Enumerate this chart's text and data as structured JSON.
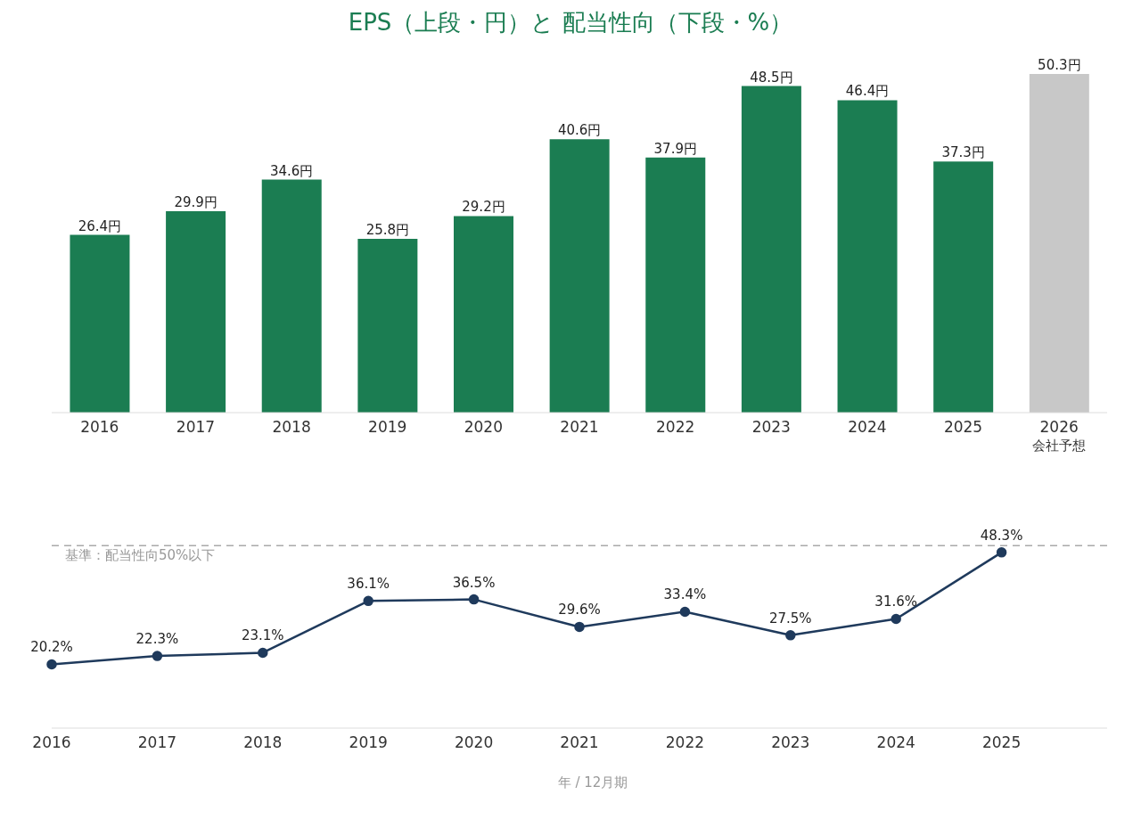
{
  "chart_data": [
    {
      "type": "bar",
      "title": "EPS（上段・円）と 配当性向（下段・%）",
      "categories": [
        "2016",
        "2017",
        "2018",
        "2019",
        "2020",
        "2021",
        "2022",
        "2023",
        "2024",
        "2025",
        "2026\n会社予想"
      ],
      "values": [
        26.4,
        29.9,
        34.6,
        25.8,
        29.2,
        40.6,
        37.9,
        48.5,
        46.4,
        37.3,
        50.3
      ],
      "colors": [
        "#1b7d52",
        "#1b7d52",
        "#1b7d52",
        "#1b7d52",
        "#1b7d52",
        "#1b7d52",
        "#1b7d52",
        "#1b7d52",
        "#1b7d52",
        "#1b7d52",
        "#c8c8c8"
      ],
      "value_labels": [
        "26.4円",
        "29.9円",
        "34.6円",
        "25.8円",
        "29.2円",
        "40.6円",
        "37.9円",
        "48.5円",
        "46.4円",
        "37.3円",
        "50.3円"
      ],
      "tick_labels": "x",
      "grid": false,
      "legend": false
    },
    {
      "type": "line",
      "xlabel": "年 / 12月期",
      "categories": [
        "2016",
        "2017",
        "2018",
        "2019",
        "2020",
        "2021",
        "2022",
        "2023",
        "2024",
        "2025",
        null
      ],
      "series": [
        {
          "color": "#1f3a5c",
          "values": [
            20.2,
            22.3,
            23.1,
            36.1,
            36.5,
            29.6,
            33.4,
            27.5,
            31.6,
            48.3,
            null
          ],
          "value_labels": [
            "20.2%",
            "22.3%",
            "23.1%",
            "36.1%",
            "36.5%",
            "29.6%",
            "33.4%",
            "27.5%",
            "31.6%",
            "48.3%",
            null
          ]
        }
      ],
      "ref_lines": [
        {
          "axis": "y",
          "value": 50,
          "label": "基準：配当性向50%以下",
          "color": "#aaaaaa",
          "line_style": "dashed"
        }
      ],
      "marker": "circle",
      "line_style": "solid",
      "tick_labels": "x",
      "grid": false,
      "legend": false
    }
  ]
}
